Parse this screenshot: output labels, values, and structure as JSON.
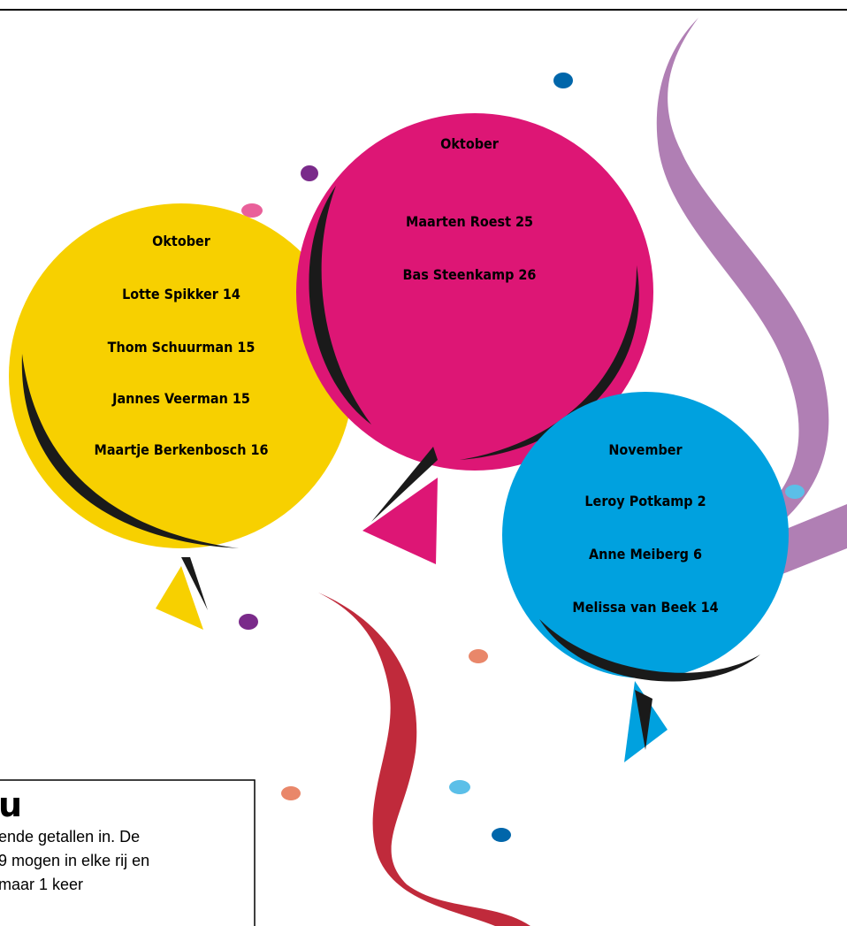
{
  "balloons": [
    {
      "month": "Oktober",
      "names": [
        "Lotte Spikker 14",
        "Thom Schuurman 15",
        "Jannes Veerman 15",
        "Maartje Berkenbosch 16"
      ]
    },
    {
      "month": "Oktober",
      "names": [
        "Maarten Roest 25",
        "Bas Steenkamp 26"
      ]
    },
    {
      "month": "November",
      "names": [
        "Leroy Potkamp 2",
        "Anne Meiberg 6",
        "Melissa van Beek 14"
      ]
    }
  ],
  "puzzle": {
    "title": "u",
    "lines": [
      "ende getallen in. De",
      "9 mogen in elke rij en",
      "maar 1 keer"
    ]
  }
}
